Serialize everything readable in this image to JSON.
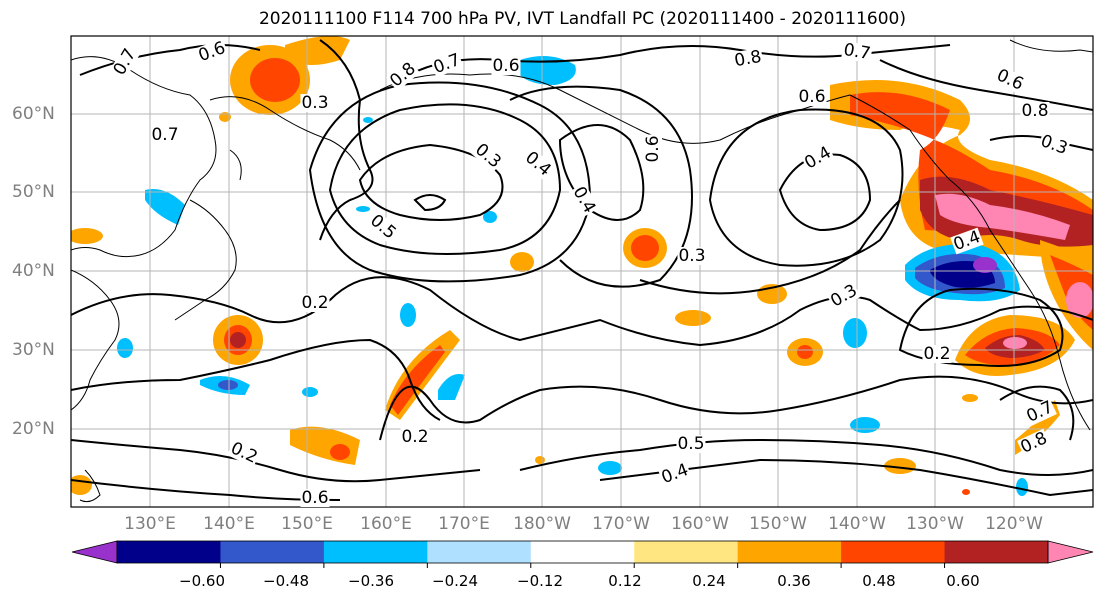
{
  "title": "2020111100 F114 700 hPa PV, IVT Landfall PC (2020111400 - 2020111600)",
  "lat_labels": [
    "60°N",
    "50°N",
    "40°N",
    "30°N",
    "20°N"
  ],
  "lon_labels": [
    "130°E",
    "140°E",
    "150°E",
    "160°E",
    "170°E",
    "180°W",
    "170°W",
    "160°W",
    "150°W",
    "140°W",
    "130°W",
    "120°W"
  ],
  "contour_labels": [
    "0.7",
    "0.6",
    "0.8",
    "0.7",
    "0.6",
    "0.8",
    "0.7",
    "0.6",
    "0.6",
    "0.7",
    "0.3",
    "0.8",
    "0.3",
    "0.4",
    "0.6",
    "0.4",
    "0.5",
    "0.4",
    "0.3",
    "0.3",
    "0.4",
    "0.3",
    "0.2",
    "0.2",
    "0.2",
    "0.5",
    "0.4",
    "0.2",
    "0.6",
    "0.7",
    "0.8"
  ],
  "colorbar": {
    "ticks": [
      "−0.60",
      "−0.48",
      "−0.36",
      "−0.24",
      "−0.12",
      "0.12",
      "0.24",
      "0.36",
      "0.48",
      "0.60"
    ],
    "colors": [
      "#9932cc",
      "#00008b",
      "#3358cc",
      "#00bfff",
      "#b0e0ff",
      "#ffffff",
      "#ffe680",
      "#ffa500",
      "#ff4500",
      "#b22222",
      "#ff85b3"
    ]
  }
}
